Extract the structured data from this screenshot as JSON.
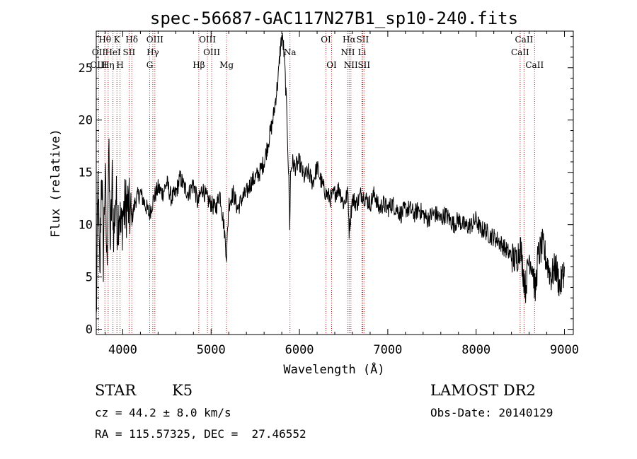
{
  "chart_data": {
    "type": "line",
    "title": "spec-56687-GAC117N27B1_sp10-240.fits",
    "xlabel": "Wavelength (Å)",
    "ylabel": "Flux (relative)",
    "xlim": [
      3700,
      9100
    ],
    "ylim": [
      -0.5,
      28.5
    ],
    "x_ticks": [
      4000,
      5000,
      6000,
      7000,
      8000,
      9000
    ],
    "y_ticks": [
      0,
      5,
      10,
      15,
      20,
      25
    ],
    "grid": false,
    "line_color": "#000000",
    "marker_color": "#b22222",
    "series": [
      {
        "x": [
          3700,
          3720,
          3740,
          3760,
          3780,
          3800,
          3820,
          3840,
          3860,
          3880,
          3900,
          3920,
          3940,
          3960,
          3980,
          4000,
          4050,
          4100,
          4150,
          4200,
          4250,
          4300,
          4350,
          4400,
          4450,
          4500,
          4550,
          4600,
          4650,
          4700,
          4750,
          4800,
          4850,
          4900,
          4950,
          5000,
          5050,
          5100,
          5150,
          5175,
          5200,
          5250,
          5300,
          5350,
          5400,
          5450,
          5500,
          5550,
          5600,
          5650,
          5700,
          5730,
          5760,
          5780,
          5800,
          5820,
          5840,
          5860,
          5880,
          5890,
          5900,
          5920,
          5950,
          6000,
          6050,
          6100,
          6150,
          6200,
          6250,
          6300,
          6350,
          6400,
          6450,
          6500,
          6550,
          6563,
          6600,
          6650,
          6700,
          6750,
          6800,
          6850,
          6900,
          6950,
          7000,
          7050,
          7100,
          7150,
          7200,
          7250,
          7300,
          7350,
          7400,
          7450,
          7500,
          7550,
          7600,
          7650,
          7700,
          7750,
          7800,
          7850,
          7900,
          7950,
          8000,
          8050,
          8100,
          8150,
          8200,
          8250,
          8300,
          8350,
          8400,
          8450,
          8500,
          8540,
          8560,
          8600,
          8640,
          8670,
          8700,
          8750,
          8800,
          8850,
          8900,
          8950,
          9000
        ],
        "y": [
          0.5,
          14,
          4,
          16,
          7,
          15,
          6,
          17,
          8,
          14,
          9,
          13,
          10,
          12,
          9,
          11,
          12,
          10.5,
          12.5,
          13,
          12,
          11,
          12.5,
          13.5,
          13,
          14,
          12.5,
          13,
          14.5,
          13.5,
          13,
          14,
          12,
          13.5,
          12.5,
          12,
          11.5,
          13,
          9.5,
          7,
          12,
          13,
          11.5,
          12.5,
          13,
          14,
          14.5,
          15,
          16,
          18,
          20,
          22,
          24,
          26.5,
          28,
          27,
          24,
          20,
          14,
          10,
          15,
          16,
          15.5,
          16,
          14.5,
          15,
          14,
          15.5,
          14,
          13,
          12.5,
          13,
          13.5,
          12,
          13,
          9.5,
          12.5,
          12,
          13,
          12.5,
          12,
          13,
          11.5,
          12,
          11.5,
          12,
          11.5,
          11,
          11.5,
          11.5,
          11,
          11.5,
          11,
          10.5,
          11,
          11,
          10.5,
          11,
          10.5,
          10,
          10.5,
          10,
          9.8,
          10,
          10.5,
          9.5,
          9.5,
          9,
          8.8,
          8.5,
          8,
          7.5,
          7,
          6.5,
          8,
          5,
          4,
          7,
          6,
          3.5,
          7,
          8,
          6.5,
          5,
          6,
          4,
          6
        ]
      }
    ],
    "line_markers": [
      {
        "name": "Hθ",
        "wave": 3798,
        "row": 0
      },
      {
        "name": "OII",
        "wave": 3727,
        "row": 1
      },
      {
        "name": "OIII",
        "wave": 3727,
        "row": 2
      },
      {
        "name": "HeI",
        "wave": 3889,
        "row": 1
      },
      {
        "name": "Hη",
        "wave": 3835,
        "row": 2
      },
      {
        "name": "K",
        "wave": 3934,
        "row": 0
      },
      {
        "name": "SII",
        "wave": 4072,
        "row": 1
      },
      {
        "name": "H",
        "wave": 3969,
        "row": 2
      },
      {
        "name": "Hδ",
        "wave": 4102,
        "row": 0
      },
      {
        "name": "OIII",
        "wave": 4363,
        "row": 0
      },
      {
        "name": "Hγ",
        "wave": 4340,
        "row": 1
      },
      {
        "name": "G",
        "wave": 4305,
        "row": 2
      },
      {
        "name": "OIII",
        "wave": 4959,
        "row": 0
      },
      {
        "name": "OIII",
        "wave": 5007,
        "row": 1
      },
      {
        "name": "Hβ",
        "wave": 4861,
        "row": 2
      },
      {
        "name": "Mg",
        "wave": 5175,
        "row": 2
      },
      {
        "name": "Na",
        "wave": 5893,
        "row": 1
      },
      {
        "name": "OI",
        "wave": 6300,
        "row": 0
      },
      {
        "name": "OI",
        "wave": 6364,
        "row": 2
      },
      {
        "name": "Hα",
        "wave": 6563,
        "row": 0
      },
      {
        "name": "SII",
        "wave": 6716,
        "row": 0
      },
      {
        "name": "NII",
        "wave": 6548,
        "row": 1
      },
      {
        "name": "Li",
        "wave": 6708,
        "row": 1
      },
      {
        "name": "NII",
        "wave": 6583,
        "row": 2
      },
      {
        "name": "SII",
        "wave": 6731,
        "row": 2
      },
      {
        "name": "CaII",
        "wave": 8542,
        "row": 0
      },
      {
        "name": "CaII",
        "wave": 8498,
        "row": 1
      },
      {
        "name": "CaII",
        "wave": 8662,
        "row": 2
      }
    ]
  },
  "info": {
    "object_class": "STAR",
    "subclass": "K5",
    "survey": "LAMOST DR2",
    "redshift": "cz = 44.2 ± 8.0 km/s",
    "obs_date": "Obs-Date: 20140129",
    "coords": "RA = 115.57325, DEC =  27.46552"
  }
}
